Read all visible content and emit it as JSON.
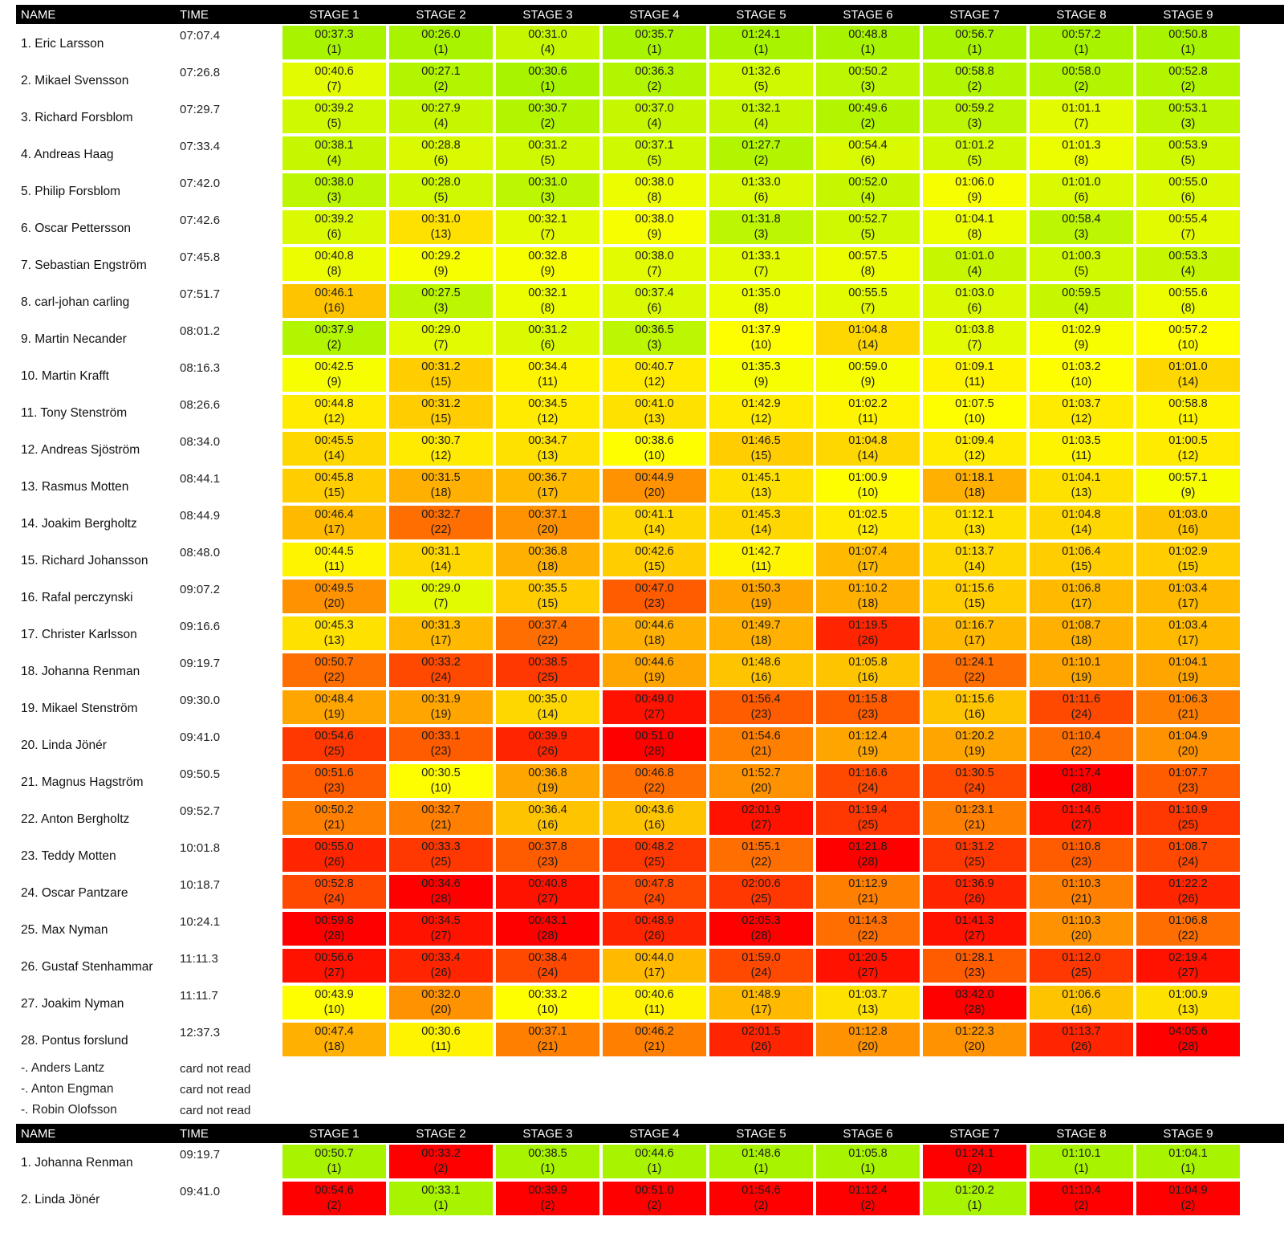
{
  "headers": [
    "NAME",
    "TIME",
    "STAGE 1",
    "STAGE 2",
    "STAGE 3",
    "STAGE 4",
    "STAGE 5",
    "STAGE 6",
    "STAGE 7",
    "STAGE 8",
    "STAGE 9"
  ],
  "colors": {
    "green": "#a8f400",
    "yellow": "#ffff00",
    "orange": "#ffa800",
    "red": "#ff0000"
  },
  "results": [
    {
      "name": "1. Eric Larsson",
      "time": "07:07.4",
      "stages": [
        [
          "00:37.3",
          "(1)"
        ],
        [
          "00:26.0",
          "(1)"
        ],
        [
          "00:31.0",
          "(4)"
        ],
        [
          "00:35.7",
          "(1)"
        ],
        [
          "01:24.1",
          "(1)"
        ],
        [
          "00:48.8",
          "(1)"
        ],
        [
          "00:56.7",
          "(1)"
        ],
        [
          "00:57.2",
          "(1)"
        ],
        [
          "00:50.8",
          "(1)"
        ]
      ]
    },
    {
      "name": "2. Mikael Svensson",
      "time": "07:26.8",
      "stages": [
        [
          "00:40.6",
          "(7)"
        ],
        [
          "00:27.1",
          "(2)"
        ],
        [
          "00:30.6",
          "(1)"
        ],
        [
          "00:36.3",
          "(2)"
        ],
        [
          "01:32.6",
          "(5)"
        ],
        [
          "00:50.2",
          "(3)"
        ],
        [
          "00:58.8",
          "(2)"
        ],
        [
          "00:58.0",
          "(2)"
        ],
        [
          "00:52.8",
          "(2)"
        ]
      ]
    },
    {
      "name": "3. Richard Forsblom",
      "time": "07:29.7",
      "stages": [
        [
          "00:39.2",
          "(5)"
        ],
        [
          "00:27.9",
          "(4)"
        ],
        [
          "00:30.7",
          "(2)"
        ],
        [
          "00:37.0",
          "(4)"
        ],
        [
          "01:32.1",
          "(4)"
        ],
        [
          "00:49.6",
          "(2)"
        ],
        [
          "00:59.2",
          "(3)"
        ],
        [
          "01:01.1",
          "(7)"
        ],
        [
          "00:53.1",
          "(3)"
        ]
      ]
    },
    {
      "name": "4. Andreas Haag",
      "time": "07:33.4",
      "stages": [
        [
          "00:38.1",
          "(4)"
        ],
        [
          "00:28.8",
          "(6)"
        ],
        [
          "00:31.2",
          "(5)"
        ],
        [
          "00:37.1",
          "(5)"
        ],
        [
          "01:27.7",
          "(2)"
        ],
        [
          "00:54.4",
          "(6)"
        ],
        [
          "01:01.2",
          "(5)"
        ],
        [
          "01:01.3",
          "(8)"
        ],
        [
          "00:53.9",
          "(5)"
        ]
      ]
    },
    {
      "name": "5. Philip Forsblom",
      "time": "07:42.0",
      "stages": [
        [
          "00:38.0",
          "(3)"
        ],
        [
          "00:28.0",
          "(5)"
        ],
        [
          "00:31.0",
          "(3)"
        ],
        [
          "00:38.0",
          "(8)"
        ],
        [
          "01:33.0",
          "(6)"
        ],
        [
          "00:52.0",
          "(4)"
        ],
        [
          "01:06.0",
          "(9)"
        ],
        [
          "01:01.0",
          "(6)"
        ],
        [
          "00:55.0",
          "(6)"
        ]
      ]
    },
    {
      "name": "6. Oscar Pettersson",
      "time": "07:42.6",
      "stages": [
        [
          "00:39.2",
          "(6)"
        ],
        [
          "00:31.0",
          "(13)"
        ],
        [
          "00:32.1",
          "(7)"
        ],
        [
          "00:38.0",
          "(9)"
        ],
        [
          "01:31.8",
          "(3)"
        ],
        [
          "00:52.7",
          "(5)"
        ],
        [
          "01:04.1",
          "(8)"
        ],
        [
          "00:58.4",
          "(3)"
        ],
        [
          "00:55.4",
          "(7)"
        ]
      ]
    },
    {
      "name": "7. Sebastian Engström",
      "time": "07:45.8",
      "stages": [
        [
          "00:40.8",
          "(8)"
        ],
        [
          "00:29.2",
          "(9)"
        ],
        [
          "00:32.8",
          "(9)"
        ],
        [
          "00:38.0",
          "(7)"
        ],
        [
          "01:33.1",
          "(7)"
        ],
        [
          "00:57.5",
          "(8)"
        ],
        [
          "01:01.0",
          "(4)"
        ],
        [
          "01:00.3",
          "(5)"
        ],
        [
          "00:53.3",
          "(4)"
        ]
      ]
    },
    {
      "name": "8. carl-johan carling",
      "time": "07:51.7",
      "stages": [
        [
          "00:46.1",
          "(16)"
        ],
        [
          "00:27.5",
          "(3)"
        ],
        [
          "00:32.1",
          "(8)"
        ],
        [
          "00:37.4",
          "(6)"
        ],
        [
          "01:35.0",
          "(8)"
        ],
        [
          "00:55.5",
          "(7)"
        ],
        [
          "01:03.0",
          "(6)"
        ],
        [
          "00:59.5",
          "(4)"
        ],
        [
          "00:55.6",
          "(8)"
        ]
      ]
    },
    {
      "name": "9. Martin Necander",
      "time": "08:01.2",
      "stages": [
        [
          "00:37.9",
          "(2)"
        ],
        [
          "00:29.0",
          "(7)"
        ],
        [
          "00:31.2",
          "(6)"
        ],
        [
          "00:36.5",
          "(3)"
        ],
        [
          "01:37.9",
          "(10)"
        ],
        [
          "01:04.8",
          "(14)"
        ],
        [
          "01:03.8",
          "(7)"
        ],
        [
          "01:02.9",
          "(9)"
        ],
        [
          "00:57.2",
          "(10)"
        ]
      ]
    },
    {
      "name": "10. Martin Krafft",
      "time": "08:16.3",
      "stages": [
        [
          "00:42.5",
          "(9)"
        ],
        [
          "00:31.2",
          "(15)"
        ],
        [
          "00:34.4",
          "(11)"
        ],
        [
          "00:40.7",
          "(12)"
        ],
        [
          "01:35.3",
          "(9)"
        ],
        [
          "00:59.0",
          "(9)"
        ],
        [
          "01:09.1",
          "(11)"
        ],
        [
          "01:03.2",
          "(10)"
        ],
        [
          "01:01.0",
          "(14)"
        ]
      ]
    },
    {
      "name": "11. Tony Stenström",
      "time": "08:26.6",
      "stages": [
        [
          "00:44.8",
          "(12)"
        ],
        [
          "00:31.2",
          "(15)"
        ],
        [
          "00:34.5",
          "(12)"
        ],
        [
          "00:41.0",
          "(13)"
        ],
        [
          "01:42.9",
          "(12)"
        ],
        [
          "01:02.2",
          "(11)"
        ],
        [
          "01:07.5",
          "(10)"
        ],
        [
          "01:03.7",
          "(12)"
        ],
        [
          "00:58.8",
          "(11)"
        ]
      ]
    },
    {
      "name": "12. Andreas Sjöström",
      "time": "08:34.0",
      "stages": [
        [
          "00:45.5",
          "(14)"
        ],
        [
          "00:30.7",
          "(12)"
        ],
        [
          "00:34.7",
          "(13)"
        ],
        [
          "00:38.6",
          "(10)"
        ],
        [
          "01:46.5",
          "(15)"
        ],
        [
          "01:04.8",
          "(14)"
        ],
        [
          "01:09.4",
          "(12)"
        ],
        [
          "01:03.5",
          "(11)"
        ],
        [
          "01:00.5",
          "(12)"
        ]
      ]
    },
    {
      "name": "13. Rasmus Motten",
      "time": "08:44.1",
      "stages": [
        [
          "00:45.8",
          "(15)"
        ],
        [
          "00:31.5",
          "(18)"
        ],
        [
          "00:36.7",
          "(17)"
        ],
        [
          "00:44.9",
          "(20)"
        ],
        [
          "01:45.1",
          "(13)"
        ],
        [
          "01:00.9",
          "(10)"
        ],
        [
          "01:18.1",
          "(18)"
        ],
        [
          "01:04.1",
          "(13)"
        ],
        [
          "00:57.1",
          "(9)"
        ]
      ]
    },
    {
      "name": "14. Joakim Bergholtz",
      "time": "08:44.9",
      "stages": [
        [
          "00:46.4",
          "(17)"
        ],
        [
          "00:32.7",
          "(22)"
        ],
        [
          "00:37.1",
          "(20)"
        ],
        [
          "00:41.1",
          "(14)"
        ],
        [
          "01:45.3",
          "(14)"
        ],
        [
          "01:02.5",
          "(12)"
        ],
        [
          "01:12.1",
          "(13)"
        ],
        [
          "01:04.8",
          "(14)"
        ],
        [
          "01:03.0",
          "(16)"
        ]
      ]
    },
    {
      "name": "15. Richard Johansson",
      "time": "08:48.0",
      "stages": [
        [
          "00:44.5",
          "(11)"
        ],
        [
          "00:31.1",
          "(14)"
        ],
        [
          "00:36.8",
          "(18)"
        ],
        [
          "00:42.6",
          "(15)"
        ],
        [
          "01:42.7",
          "(11)"
        ],
        [
          "01:07.4",
          "(17)"
        ],
        [
          "01:13.7",
          "(14)"
        ],
        [
          "01:06.4",
          "(15)"
        ],
        [
          "01:02.9",
          "(15)"
        ]
      ]
    },
    {
      "name": "16. Rafal  perczynski",
      "time": "09:07.2",
      "stages": [
        [
          "00:49.5",
          "(20)"
        ],
        [
          "00:29.0",
          "(7)"
        ],
        [
          "00:35.5",
          "(15)"
        ],
        [
          "00:47.0",
          "(23)"
        ],
        [
          "01:50.3",
          "(19)"
        ],
        [
          "01:10.2",
          "(18)"
        ],
        [
          "01:15.6",
          "(15)"
        ],
        [
          "01:06.8",
          "(17)"
        ],
        [
          "01:03.4",
          "(17)"
        ]
      ]
    },
    {
      "name": "17. Christer Karlsson",
      "time": "09:16.6",
      "stages": [
        [
          "00:45.3",
          "(13)"
        ],
        [
          "00:31.3",
          "(17)"
        ],
        [
          "00:37.4",
          "(22)"
        ],
        [
          "00:44.6",
          "(18)"
        ],
        [
          "01:49.7",
          "(18)"
        ],
        [
          "01:19.5",
          "(26)"
        ],
        [
          "01:16.7",
          "(17)"
        ],
        [
          "01:08.7",
          "(18)"
        ],
        [
          "01:03.4",
          "(17)"
        ]
      ]
    },
    {
      "name": "18. Johanna Renman",
      "time": "09:19.7",
      "stages": [
        [
          "00:50.7",
          "(22)"
        ],
        [
          "00:33.2",
          "(24)"
        ],
        [
          "00:38.5",
          "(25)"
        ],
        [
          "00:44.6",
          "(19)"
        ],
        [
          "01:48.6",
          "(16)"
        ],
        [
          "01:05.8",
          "(16)"
        ],
        [
          "01:24.1",
          "(22)"
        ],
        [
          "01:10.1",
          "(19)"
        ],
        [
          "01:04.1",
          "(19)"
        ]
      ]
    },
    {
      "name": "19. Mikael Stenström",
      "time": "09:30.0",
      "stages": [
        [
          "00:48.4",
          "(19)"
        ],
        [
          "00:31.9",
          "(19)"
        ],
        [
          "00:35.0",
          "(14)"
        ],
        [
          "00:49.0",
          "(27)"
        ],
        [
          "01:56.4",
          "(23)"
        ],
        [
          "01:15.8",
          "(23)"
        ],
        [
          "01:15.6",
          "(16)"
        ],
        [
          "01:11.6",
          "(24)"
        ],
        [
          "01:06.3",
          "(21)"
        ]
      ]
    },
    {
      "name": "20. Linda Jönér",
      "time": "09:41.0",
      "stages": [
        [
          "00:54.6",
          "(25)"
        ],
        [
          "00:33.1",
          "(23)"
        ],
        [
          "00:39.9",
          "(26)"
        ],
        [
          "00:51.0",
          "(28)"
        ],
        [
          "01:54.6",
          "(21)"
        ],
        [
          "01:12.4",
          "(19)"
        ],
        [
          "01:20.2",
          "(19)"
        ],
        [
          "01:10.4",
          "(22)"
        ],
        [
          "01:04.9",
          "(20)"
        ]
      ]
    },
    {
      "name": "21. Magnus Hagström",
      "time": "09:50.5",
      "stages": [
        [
          "00:51.6",
          "(23)"
        ],
        [
          "00:30.5",
          "(10)"
        ],
        [
          "00:36.8",
          "(19)"
        ],
        [
          "00:46.8",
          "(22)"
        ],
        [
          "01:52.7",
          "(20)"
        ],
        [
          "01:16.6",
          "(24)"
        ],
        [
          "01:30.5",
          "(24)"
        ],
        [
          "01:17.4",
          "(28)"
        ],
        [
          "01:07.7",
          "(23)"
        ]
      ]
    },
    {
      "name": "22. Anton Bergholtz",
      "time": "09:52.7",
      "stages": [
        [
          "00:50.2",
          "(21)"
        ],
        [
          "00:32.7",
          "(21)"
        ],
        [
          "00:36.4",
          "(16)"
        ],
        [
          "00:43.6",
          "(16)"
        ],
        [
          "02:01.9",
          "(27)"
        ],
        [
          "01:19.4",
          "(25)"
        ],
        [
          "01:23.1",
          "(21)"
        ],
        [
          "01:14.6",
          "(27)"
        ],
        [
          "01:10.9",
          "(25)"
        ]
      ]
    },
    {
      "name": "23. Teddy Motten",
      "time": "10:01.8",
      "stages": [
        [
          "00:55.0",
          "(26)"
        ],
        [
          "00:33.3",
          "(25)"
        ],
        [
          "00:37.8",
          "(23)"
        ],
        [
          "00:48.2",
          "(25)"
        ],
        [
          "01:55.1",
          "(22)"
        ],
        [
          "01:21.8",
          "(28)"
        ],
        [
          "01:31.2",
          "(25)"
        ],
        [
          "01:10.8",
          "(23)"
        ],
        [
          "01:08.7",
          "(24)"
        ]
      ]
    },
    {
      "name": "24. Oscar Pantzare",
      "time": "10:18.7",
      "stages": [
        [
          "00:52.8",
          "(24)"
        ],
        [
          "00:34.6",
          "(28)"
        ],
        [
          "00:40.8",
          "(27)"
        ],
        [
          "00:47.8",
          "(24)"
        ],
        [
          "02:00.6",
          "(25)"
        ],
        [
          "01:12.9",
          "(21)"
        ],
        [
          "01:36.9",
          "(26)"
        ],
        [
          "01:10.3",
          "(21)"
        ],
        [
          "01:22.2",
          "(26)"
        ]
      ]
    },
    {
      "name": "25. Max Nyman",
      "time": "10:24.1",
      "stages": [
        [
          "00:59.8",
          "(28)"
        ],
        [
          "00:34.5",
          "(27)"
        ],
        [
          "00:43.1",
          "(28)"
        ],
        [
          "00:48.9",
          "(26)"
        ],
        [
          "02:05.3",
          "(28)"
        ],
        [
          "01:14.3",
          "(22)"
        ],
        [
          "01:41.3",
          "(27)"
        ],
        [
          "01:10.3",
          "(20)"
        ],
        [
          "01:06.8",
          "(22)"
        ]
      ]
    },
    {
      "name": "26. Gustaf Stenhammar",
      "time": "11:11.3",
      "stages": [
        [
          "00:56.6",
          "(27)"
        ],
        [
          "00:33.4",
          "(26)"
        ],
        [
          "00:38.4",
          "(24)"
        ],
        [
          "00:44.0",
          "(17)"
        ],
        [
          "01:59.0",
          "(24)"
        ],
        [
          "01:20.5",
          "(27)"
        ],
        [
          "01:28.1",
          "(23)"
        ],
        [
          "01:12.0",
          "(25)"
        ],
        [
          "02:19.4",
          "(27)"
        ]
      ]
    },
    {
      "name": "27. Joakim Nyman",
      "time": "11:11.7",
      "stages": [
        [
          "00:43.9",
          "(10)"
        ],
        [
          "00:32.0",
          "(20)"
        ],
        [
          "00:33.2",
          "(10)"
        ],
        [
          "00:40.6",
          "(11)"
        ],
        [
          "01:48.9",
          "(17)"
        ],
        [
          "01:03.7",
          "(13)"
        ],
        [
          "03:42.0",
          "(28)"
        ],
        [
          "01:06.6",
          "(16)"
        ],
        [
          "01:00.9",
          "(13)"
        ]
      ]
    },
    {
      "name": "28. Pontus forslund",
      "time": "12:37.3",
      "stages": [
        [
          "00:47.4",
          "(18)"
        ],
        [
          "00:30.6",
          "(11)"
        ],
        [
          "00:37.1",
          "(21)"
        ],
        [
          "00:46.2",
          "(21)"
        ],
        [
          "02:01.5",
          "(26)"
        ],
        [
          "01:12.8",
          "(20)"
        ],
        [
          "01:22.3",
          "(20)"
        ],
        [
          "01:13.7",
          "(26)"
        ],
        [
          "04:05.6",
          "(28)"
        ]
      ]
    }
  ],
  "not_read": [
    {
      "name": "-. Anders Lantz",
      "status": "card not read"
    },
    {
      "name": "-. Anton Engman",
      "status": "card not read"
    },
    {
      "name": "-. Robin Olofsson",
      "status": "card not read"
    }
  ],
  "results2": [
    {
      "name": "1. Johanna Renman",
      "time": "09:19.7",
      "stages": [
        [
          "00:50.7",
          "(1)"
        ],
        [
          "00:33.2",
          "(2)"
        ],
        [
          "00:38.5",
          "(1)"
        ],
        [
          "00:44.6",
          "(1)"
        ],
        [
          "01:48.6",
          "(1)"
        ],
        [
          "01:05.8",
          "(1)"
        ],
        [
          "01:24.1",
          "(2)"
        ],
        [
          "01:10.1",
          "(1)"
        ],
        [
          "01:04.1",
          "(1)"
        ]
      ]
    },
    {
      "name": "2. Linda Jönér",
      "time": "09:41.0",
      "stages": [
        [
          "00:54.6",
          "(2)"
        ],
        [
          "00:33.1",
          "(1)"
        ],
        [
          "00:39.9",
          "(2)"
        ],
        [
          "00:51.0",
          "(2)"
        ],
        [
          "01:54.6",
          "(2)"
        ],
        [
          "01:12.4",
          "(2)"
        ],
        [
          "01:20.2",
          "(1)"
        ],
        [
          "01:10.4",
          "(2)"
        ],
        [
          "01:04.9",
          "(2)"
        ]
      ]
    }
  ]
}
